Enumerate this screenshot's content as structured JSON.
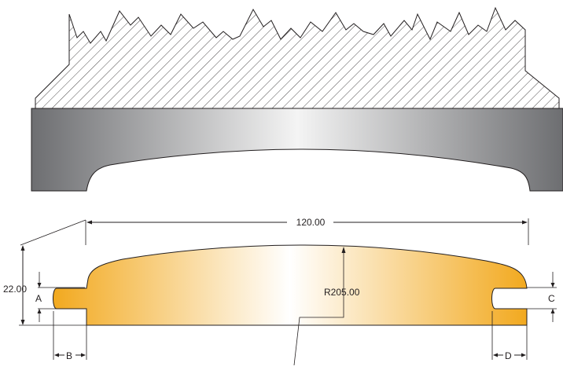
{
  "dimensions": {
    "overall_width": "120.00",
    "height": "22.00",
    "radius": "R205.00",
    "label_a": "A",
    "label_b": "B",
    "label_c": "C",
    "label_d": "D"
  },
  "colors": {
    "line": "#231f20",
    "profile_edge": "#f2a91f",
    "profile_center": "#ffffff",
    "tool_edge": "#6d6e71",
    "tool_center": "#f4f4f4"
  }
}
